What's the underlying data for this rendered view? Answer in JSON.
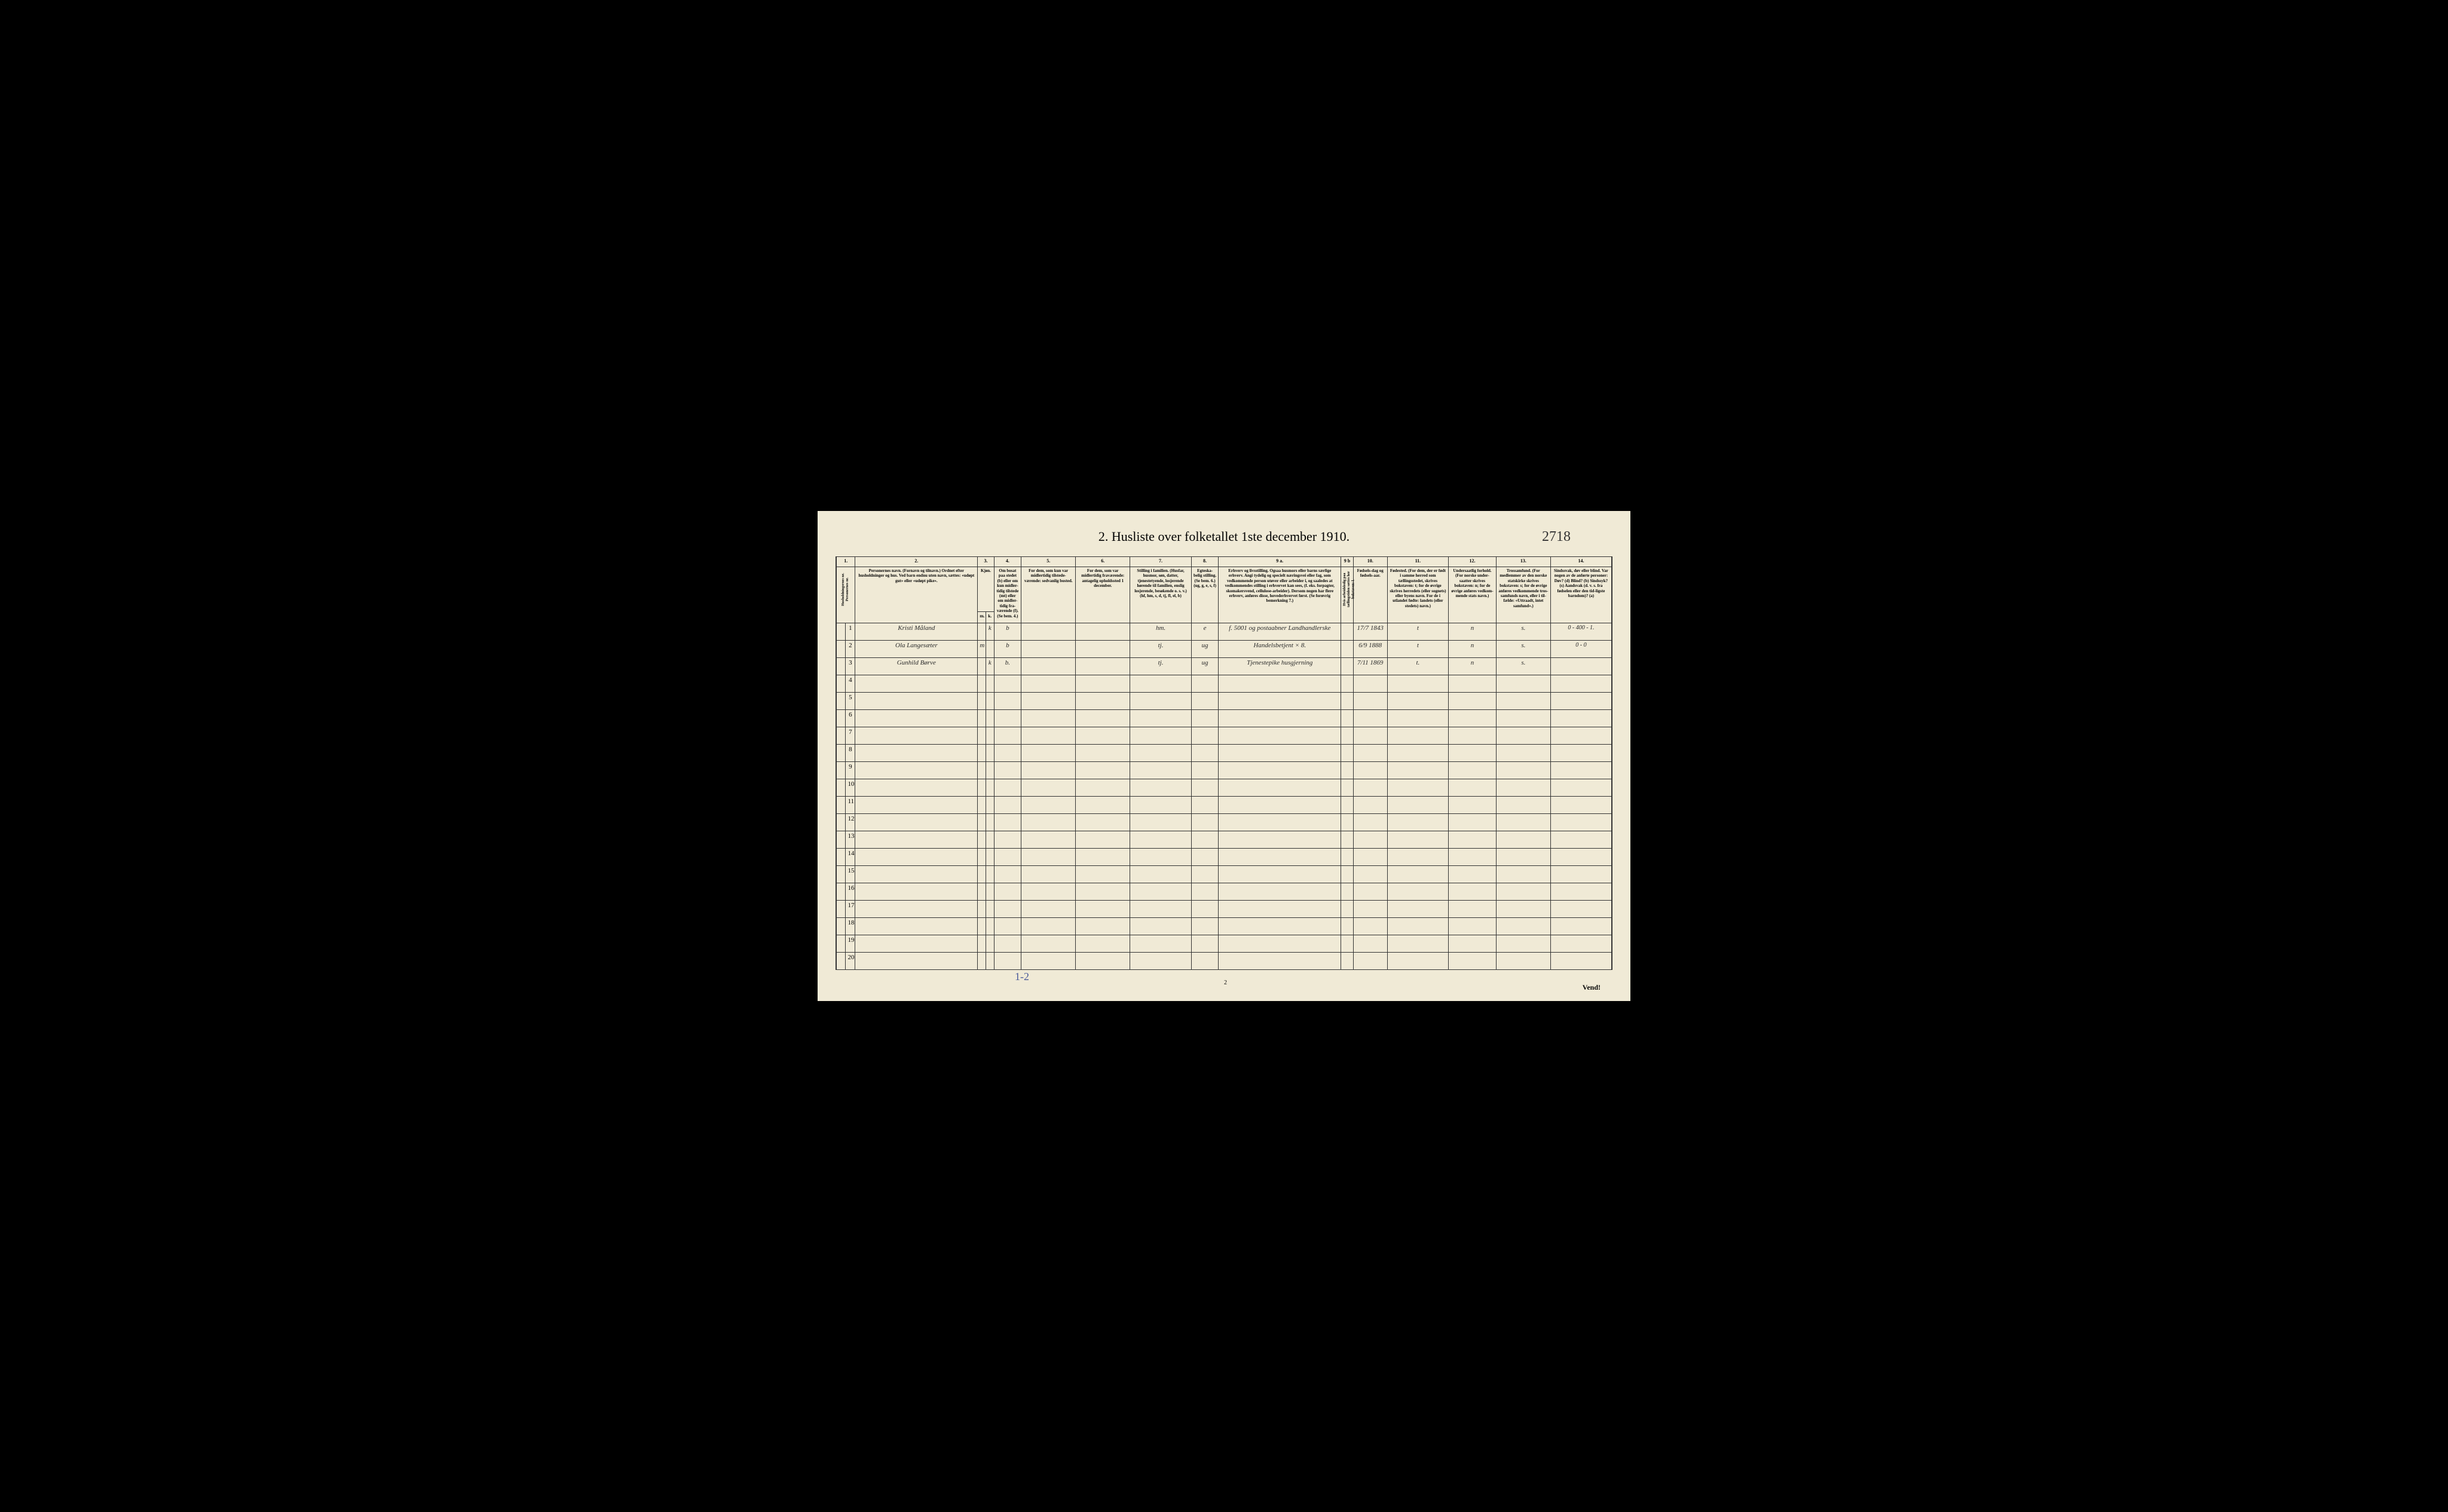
{
  "title": "2. Husliste over folketallet 1ste december 1910.",
  "topRightNumber": "2718",
  "bottomLeftNote": "1-2",
  "pageNumBottom": "2",
  "vendText": "Vend!",
  "columns": {
    "c1": "1.",
    "c2": "2.",
    "c3": "3.",
    "c4": "4.",
    "c5": "5.",
    "c6": "6.",
    "c7": "7.",
    "c8": "8.",
    "c9a": "9 a.",
    "c9b": "9 b",
    "c10": "10.",
    "c11": "11.",
    "c12": "12.",
    "c13": "13.",
    "c14": "14."
  },
  "headers": {
    "h1": "Husholdningernes nr.\nPersonernes nr.",
    "h2": "Personernes navn.\n(Fornavn og tilnavn.)\nOrdnet efter husholdninger og hus.\nVed barn endnu uten navn, sættes: «udøpt gut» eller «udøpt pike».",
    "h3": "Kjøn.",
    "h3sub": "Mænd.\nKvinder.",
    "h4": "Om bosat paa stedet (b) eller om kun midler-tidig tilstede (mt) eller om midler-tidig fra-værende (f). (Se bem. 4.)",
    "h5": "For dem, som kun var midlertidig tilstede-værende:\nsedvanlig bosted.",
    "h6": "For dem, som var midlertidig fraværende:\nantagelig opholdssted 1 december.",
    "h7": "Stilling i familien.\n(Husfar, husmor, søn, datter, tjenestetyende, losjerende hørende til familien, enslig losjerende, besøkende o. s. v.)\n(hf, hm, s, d, tj, fl, el, b)",
    "h8": "Egteska-belig stilling. (Se bem. 6.)\n(ug, g, e, s, f)",
    "h9a": "Erhverv og livsstilling.\nOgsaa husmors eller barns særlige erhverv. Angi tydelig og specielt næringsvei eller fag, som vedkommende person utøver eller arbeider i, og saaledes at vedkommendes stilling i erhvervet kan sees, (f. eks. forpagter, skomakersvend, cellulose-arbeider). Dersom nogen har flere erhverv, anføres disse, hovederhvervet først.\n(Se forøvrig bemerkning 7.)",
    "h9b": "Hvis arbeidsledig paa tællingstiden sættes her bokstaven: l.",
    "h10": "Fødsels-dag og fødsels-aar.",
    "h11": "Fødested.\n(For dem, der er født i samme herred som tællingsstedet, skrives bokstaven: t; for de øvrige skrives herredets (eller sognets) eller byens navn. For de i utlandet fødte: landets (eller stedets) navn.)",
    "h12": "Undersaatlig forhold.\n(For norske under-saatter skrives bokstaven: n; for de øvrige anføres vedkom-mende stats navn.)",
    "h13": "Trossamfund.\n(For medlemmer av den norske statskirke skrives bokstaven: s; for de øvrige anføres vedkommende tros-samfunds navn, eller i til-fælde: «Uttraadt, intet samfund».)",
    "h14": "Sindssvak, døv eller blind.\nVar nogen av de anførte personer:\nDøv? (d)\nBlind? (b)\nSindssyk? (s)\nAandsvak (d. v. s. fra fødselen eller den tid-ligste barndom)? (a)"
  },
  "mk": {
    "m": "m.",
    "k": "k."
  },
  "rows": [
    {
      "num": "1",
      "name": "Kristi Måland",
      "sex_m": "",
      "sex_k": "k",
      "bosat": "b",
      "c5": "",
      "c6": "",
      "stilling": "hm.",
      "egte": "e",
      "erhverv": "f. 5001 og postaabner Landhandlerske",
      "c9b": "",
      "fodsel": "17/7 1843",
      "fodested": "t",
      "under": "n",
      "tros": "s.",
      "sinds": "0 - 400 - 1."
    },
    {
      "num": "2",
      "name": "Ola Langesæter",
      "sex_m": "m",
      "sex_k": "",
      "bosat": "b",
      "c5": "",
      "c6": "",
      "stilling": "tj.",
      "egte": "ug",
      "erhverv": "Handelsbetjent × 8.",
      "c9b": "",
      "fodsel": "6/9 1888",
      "fodested": "t",
      "under": "n",
      "tros": "s.",
      "sinds": "0 - 0"
    },
    {
      "num": "3",
      "name": "Gunhild Børve",
      "sex_m": "",
      "sex_k": "k",
      "bosat": "b.",
      "c5": "",
      "c6": "",
      "stilling": "tj.",
      "egte": "ug",
      "erhverv": "Tjenestepike husgjerning",
      "c9b": "",
      "fodsel": "7/11 1869",
      "fodested": "t.",
      "under": "n",
      "tros": "s.",
      "sinds": ""
    }
  ],
  "emptyRows": [
    "4",
    "5",
    "6",
    "7",
    "8",
    "9",
    "10",
    "11",
    "12",
    "13",
    "14",
    "15",
    "16",
    "17",
    "18",
    "19",
    "20"
  ]
}
